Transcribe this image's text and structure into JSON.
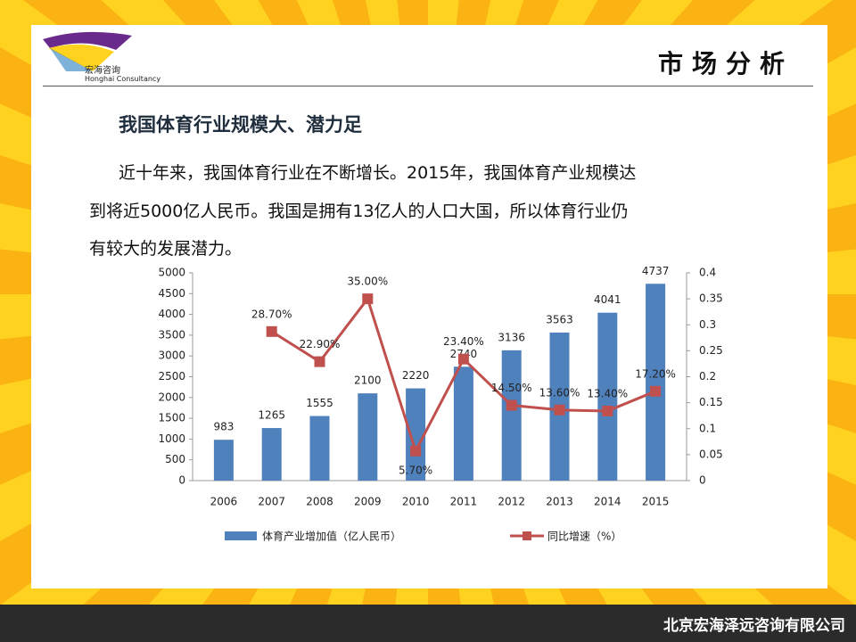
{
  "logo": {
    "name": "宏海咨询",
    "english": "Honghai Consultancy"
  },
  "header": {
    "title": "市场分析"
  },
  "subtitle": "我国体育行业规模大、潜力足",
  "body": [
    "近十年来，我国体育行业在不断增长。2015年，我国体育产业规模达",
    "到将近5000亿人民币。我国是拥有13亿人的人口大国，所以体育行业仍",
    "有较大的发展潜力。"
  ],
  "chart_data": {
    "type": "combo",
    "categories": [
      "2006",
      "2007",
      "2008",
      "2009",
      "2010",
      "2011",
      "2012",
      "2013",
      "2014",
      "2015"
    ],
    "series": [
      {
        "name": "体育产业增加值（亿人民币）",
        "type": "bar",
        "color": "#4f81bd",
        "values": [
          983,
          1265,
          1555,
          2100,
          2220,
          2740,
          3136,
          3563,
          4041,
          4737
        ]
      },
      {
        "name": "同比增速（%）",
        "type": "line",
        "axis": "y2",
        "color": "#c0504d",
        "values": [
          null,
          0.287,
          0.229,
          0.35,
          0.057,
          0.234,
          0.145,
          0.136,
          0.134,
          0.172
        ],
        "value_labels": [
          null,
          "28.70%",
          "22.90%",
          "35.00%",
          "5.70%",
          "23.40%",
          "14.50%",
          "13.60%",
          "13.40%",
          "17.20%"
        ]
      }
    ],
    "ylim": [
      0,
      5000
    ],
    "yticks": [
      0,
      500,
      1000,
      1500,
      2000,
      2500,
      3000,
      3500,
      4000,
      4500,
      5000
    ],
    "y2lim": [
      0,
      0.4
    ],
    "y2ticks": [
      0,
      0.05,
      0.1,
      0.15,
      0.2,
      0.25,
      0.3,
      0.35,
      0.4
    ],
    "grid": false,
    "legend": "bottom"
  },
  "footer": "北京宏海泽远咨询有限公司"
}
